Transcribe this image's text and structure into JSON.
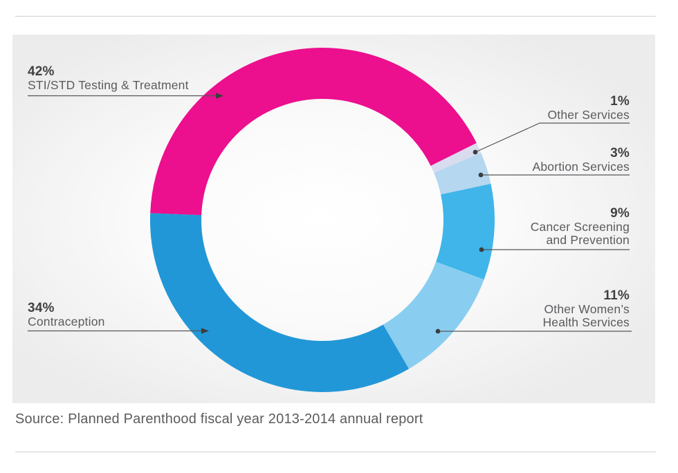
{
  "page": {
    "source_note": "Source: Planned Parenthood fiscal year 2013-2014 annual report"
  },
  "chart_data": {
    "type": "pie",
    "subtype": "donut",
    "title": "",
    "unit": "%",
    "direction": "clockwise",
    "start_angle_compass_deg": 272,
    "legend_position": "callout-labels",
    "source": "Planned Parenthood fiscal year 2013-2014 annual report",
    "slices": [
      {
        "label": "STI/STD Testing & Treatment",
        "pct": "42%",
        "value": 42,
        "color": "#ec0f8e",
        "label_side": "left"
      },
      {
        "label": "Other Services",
        "pct": "1%",
        "value": 1,
        "color": "#d9dcee",
        "label_side": "right"
      },
      {
        "label": "Abortion Services",
        "pct": "3%",
        "value": 3,
        "color": "#b5d7f0",
        "label_side": "right"
      },
      {
        "label": "Cancer Screening and Prevention",
        "pct": "9%",
        "value": 9,
        "color": "#3fb5ea",
        "label_side": "right"
      },
      {
        "label": "Other Women’s Health Services",
        "pct": "11%",
        "value": 11,
        "color": "#89cef0",
        "label_side": "right"
      },
      {
        "label": "Contraception",
        "pct": "34%",
        "value": 34,
        "color": "#2297d7",
        "label_side": "left"
      }
    ]
  }
}
